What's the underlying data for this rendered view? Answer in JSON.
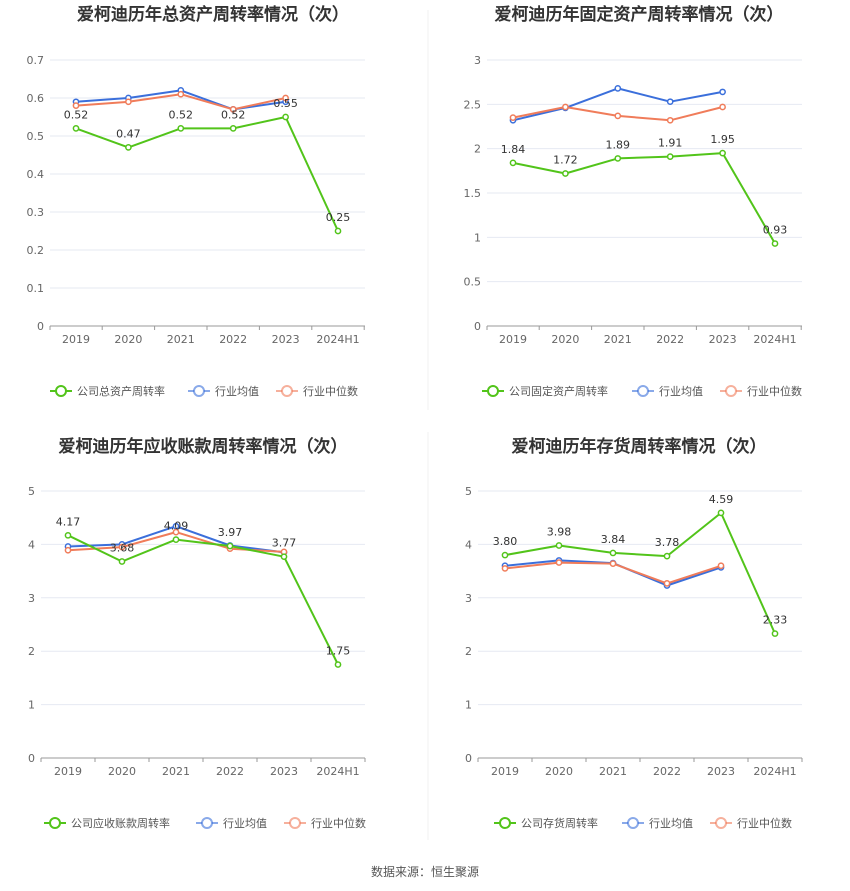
{
  "source_text": "数据来源：恒生聚源",
  "colors": {
    "company": "#52c41a",
    "avg": "#3b6fdb",
    "median": "#f07c5a",
    "grid": "#e6e9f2",
    "axis": "#999999"
  },
  "chart_data": [
    {
      "type": "line",
      "title": "爱柯迪历年总资产周转率情况（次）",
      "categories": [
        "2019",
        "2020",
        "2021",
        "2022",
        "2023",
        "2024H1"
      ],
      "y_ticks": [
        "0",
        "0.1",
        "0.2",
        "0.3",
        "0.4",
        "0.5",
        "0.6",
        "0.7"
      ],
      "ylim": [
        0,
        0.7
      ],
      "series": [
        {
          "name": "公司总资产周转率",
          "values": [
            0.52,
            0.47,
            0.52,
            0.52,
            0.55,
            0.25
          ],
          "labels": [
            "0.52",
            "0.47",
            "0.52",
            "0.52",
            "0.55",
            "0.25"
          ]
        },
        {
          "name": "行业均值",
          "values": [
            0.59,
            0.6,
            0.62,
            0.57,
            0.59,
            null
          ]
        },
        {
          "name": "行业中位数",
          "values": [
            0.58,
            0.59,
            0.61,
            0.57,
            0.6,
            null
          ]
        }
      ]
    },
    {
      "type": "line",
      "title": "爱柯迪历年固定资产周转率情况（次）",
      "categories": [
        "2019",
        "2020",
        "2021",
        "2022",
        "2023",
        "2024H1"
      ],
      "y_ticks": [
        "0",
        "0.5",
        "1",
        "1.5",
        "2",
        "2.5",
        "3"
      ],
      "ylim": [
        0,
        3
      ],
      "series": [
        {
          "name": "公司固定资产周转率",
          "values": [
            1.84,
            1.72,
            1.89,
            1.91,
            1.95,
            0.93
          ],
          "labels": [
            "1.84",
            "1.72",
            "1.89",
            "1.91",
            "1.95",
            "0.93"
          ]
        },
        {
          "name": "行业均值",
          "values": [
            2.32,
            2.46,
            2.68,
            2.53,
            2.64,
            null
          ]
        },
        {
          "name": "行业中位数",
          "values": [
            2.35,
            2.47,
            2.37,
            2.32,
            2.47,
            null
          ]
        }
      ]
    },
    {
      "type": "line",
      "title": "爱柯迪历年应收账款周转率情况（次）",
      "categories": [
        "2019",
        "2020",
        "2021",
        "2022",
        "2023",
        "2024H1"
      ],
      "y_ticks": [
        "0",
        "1",
        "2",
        "3",
        "4",
        "5"
      ],
      "ylim": [
        0,
        5
      ],
      "series": [
        {
          "name": "公司应收账款周转率",
          "values": [
            4.17,
            3.68,
            4.09,
            3.97,
            3.77,
            1.75
          ],
          "labels": [
            "4.17",
            "3.68",
            "4.09",
            "3.97",
            "3.77",
            "1.75"
          ]
        },
        {
          "name": "行业均值",
          "values": [
            3.96,
            4.0,
            4.34,
            3.98,
            3.85,
            null
          ]
        },
        {
          "name": "行业中位数",
          "values": [
            3.89,
            3.95,
            4.23,
            3.92,
            3.86,
            null
          ]
        }
      ]
    },
    {
      "type": "line",
      "title": "爱柯迪历年存货周转率情况（次）",
      "categories": [
        "2019",
        "2020",
        "2021",
        "2022",
        "2023",
        "2024H1"
      ],
      "y_ticks": [
        "0",
        "1",
        "2",
        "3",
        "4",
        "5"
      ],
      "ylim": [
        0,
        5
      ],
      "series": [
        {
          "name": "公司存货周转率",
          "values": [
            3.8,
            3.98,
            3.84,
            3.78,
            4.59,
            2.33
          ],
          "labels": [
            "3.80",
            "3.98",
            "3.84",
            "3.78",
            "4.59",
            "2.33"
          ]
        },
        {
          "name": "行业均值",
          "values": [
            3.6,
            3.7,
            3.65,
            3.23,
            3.57,
            null
          ]
        },
        {
          "name": "行业中位数",
          "values": [
            3.55,
            3.66,
            3.64,
            3.27,
            3.6,
            null
          ]
        }
      ]
    }
  ]
}
